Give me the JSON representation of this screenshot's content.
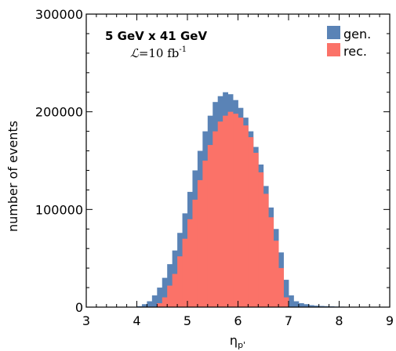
{
  "chart_data": {
    "type": "bar",
    "xlabel": "η",
    "xlabel_sub": "p'",
    "ylabel": "number of events",
    "xlim": [
      3,
      9
    ],
    "ylim": [
      0,
      300000
    ],
    "bin_width": 0.1,
    "x_ticks": [
      "3",
      "4",
      "5",
      "6",
      "7",
      "8",
      "9"
    ],
    "y_ticks": [
      "0",
      "100000",
      "200000",
      "300000"
    ],
    "annotations": {
      "energy": "5 GeV x 41 GeV",
      "lumi_symbol": "ℒ",
      "lumi_value": "=10 fb",
      "lumi_exp": "-1"
    },
    "legend": {
      "position": "top-right"
    },
    "series": [
      {
        "name": "gen.",
        "color": "#5a83b6",
        "values": [
          0,
          0,
          0,
          0,
          0,
          0,
          0,
          0,
          0,
          0,
          1000,
          3000,
          6000,
          12000,
          20000,
          30000,
          44000,
          58000,
          76000,
          96000,
          118000,
          140000,
          160000,
          180000,
          196000,
          210000,
          216000,
          220000,
          218000,
          212000,
          204000,
          194000,
          180000,
          164000,
          146000,
          124000,
          102000,
          80000,
          56000,
          28000,
          12000,
          6000,
          4000,
          3000,
          2000,
          1500,
          1200,
          1000,
          800,
          600,
          500,
          400,
          300,
          250,
          200,
          150,
          100,
          80,
          60,
          40
        ]
      },
      {
        "name": "rec.",
        "color": "#fb7268",
        "values": [
          0,
          0,
          0,
          0,
          0,
          0,
          0,
          0,
          0,
          0,
          0,
          0,
          0,
          0,
          4000,
          10000,
          22000,
          34000,
          52000,
          70000,
          90000,
          110000,
          130000,
          150000,
          166000,
          180000,
          190000,
          196000,
          200000,
          198000,
          194000,
          186000,
          174000,
          158000,
          138000,
          116000,
          92000,
          68000,
          40000,
          10000,
          0,
          0,
          0,
          0,
          0,
          0,
          0,
          0,
          0,
          0,
          0,
          0,
          0,
          0,
          0,
          0,
          0,
          0,
          0,
          0
        ]
      }
    ]
  }
}
